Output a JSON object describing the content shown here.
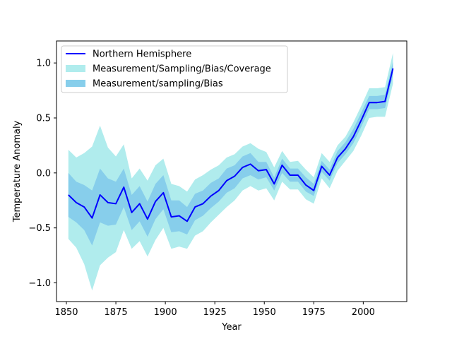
{
  "chart_data": {
    "type": "line",
    "title": "",
    "xlabel": "Year",
    "ylabel": "Temperature Anomaly",
    "xlim": [
      1845,
      2022
    ],
    "ylim": [
      -1.17,
      1.2
    ],
    "xticks": [
      1850,
      1875,
      1900,
      1925,
      1950,
      1975,
      2000
    ],
    "yticks": [
      -1.0,
      -0.5,
      0.0,
      0.5,
      1.0
    ],
    "ytick_labels": [
      "−1.0",
      "−0.5",
      "0.0",
      "0.5",
      "1.0"
    ],
    "grid": false,
    "legend_position": "upper-left",
    "x": [
      1851,
      1855,
      1859,
      1863,
      1867,
      1871,
      1875,
      1879,
      1883,
      1887,
      1891,
      1895,
      1899,
      1903,
      1907,
      1911,
      1915,
      1919,
      1923,
      1927,
      1931,
      1935,
      1939,
      1943,
      1947,
      1951,
      1955,
      1959,
      1963,
      1967,
      1971,
      1975,
      1979,
      1983,
      1987,
      1991,
      1995,
      1999,
      2003,
      2007,
      2011,
      2015
    ],
    "series": [
      {
        "name": "Northern Hemisphere",
        "kind": "line",
        "color": "#0000ff",
        "values": [
          -0.2,
          -0.27,
          -0.31,
          -0.41,
          -0.2,
          -0.27,
          -0.28,
          -0.13,
          -0.36,
          -0.28,
          -0.42,
          -0.26,
          -0.18,
          -0.4,
          -0.39,
          -0.44,
          -0.31,
          -0.28,
          -0.21,
          -0.16,
          -0.07,
          -0.03,
          0.05,
          0.08,
          0.02,
          0.03,
          -0.1,
          0.07,
          -0.02,
          -0.02,
          -0.11,
          -0.16,
          0.06,
          -0.02,
          0.14,
          0.22,
          0.33,
          0.48,
          0.64,
          0.64,
          0.65,
          0.95
        ]
      },
      {
        "name": "Measurement/Sampling/Bias/Coverage",
        "kind": "band",
        "color": "#b0eced",
        "lower": [
          -0.6,
          -0.68,
          -0.83,
          -1.07,
          -0.84,
          -0.77,
          -0.72,
          -0.52,
          -0.69,
          -0.62,
          -0.76,
          -0.61,
          -0.5,
          -0.69,
          -0.67,
          -0.69,
          -0.57,
          -0.53,
          -0.45,
          -0.38,
          -0.31,
          -0.25,
          -0.16,
          -0.12,
          -0.16,
          -0.14,
          -0.25,
          -0.08,
          -0.15,
          -0.15,
          -0.24,
          -0.28,
          -0.05,
          -0.14,
          0.02,
          0.11,
          0.2,
          0.34,
          0.5,
          0.51,
          0.51,
          0.81
        ],
        "upper": [
          0.21,
          0.14,
          0.18,
          0.24,
          0.43,
          0.23,
          0.15,
          0.26,
          -0.05,
          0.04,
          -0.07,
          0.07,
          0.13,
          -0.1,
          -0.12,
          -0.17,
          -0.06,
          -0.02,
          0.03,
          0.07,
          0.14,
          0.17,
          0.24,
          0.27,
          0.22,
          0.19,
          0.05,
          0.2,
          0.1,
          0.11,
          0.03,
          -0.04,
          0.18,
          0.1,
          0.25,
          0.33,
          0.46,
          0.61,
          0.77,
          0.77,
          0.78,
          1.09
        ]
      },
      {
        "name": "Measurement/sampling/Bias",
        "kind": "band",
        "color": "#87ceeb",
        "lower": [
          -0.4,
          -0.45,
          -0.52,
          -0.66,
          -0.45,
          -0.48,
          -0.47,
          -0.31,
          -0.52,
          -0.44,
          -0.58,
          -0.42,
          -0.33,
          -0.54,
          -0.53,
          -0.56,
          -0.43,
          -0.39,
          -0.32,
          -0.26,
          -0.18,
          -0.14,
          -0.05,
          -0.02,
          -0.06,
          -0.04,
          -0.16,
          0.0,
          -0.08,
          -0.08,
          -0.17,
          -0.21,
          0.01,
          -0.07,
          0.09,
          0.17,
          0.27,
          0.42,
          0.58,
          0.58,
          0.59,
          0.89
        ],
        "upper": [
          0.0,
          -0.08,
          -0.11,
          -0.16,
          0.04,
          -0.05,
          -0.08,
          0.04,
          -0.2,
          -0.12,
          -0.26,
          -0.1,
          -0.02,
          -0.25,
          -0.25,
          -0.31,
          -0.19,
          -0.16,
          -0.09,
          -0.05,
          0.04,
          0.07,
          0.15,
          0.18,
          0.1,
          0.1,
          -0.04,
          0.13,
          0.04,
          0.04,
          -0.04,
          -0.1,
          0.11,
          0.03,
          0.2,
          0.28,
          0.4,
          0.55,
          0.7,
          0.7,
          0.71,
          1.01
        ]
      }
    ]
  }
}
